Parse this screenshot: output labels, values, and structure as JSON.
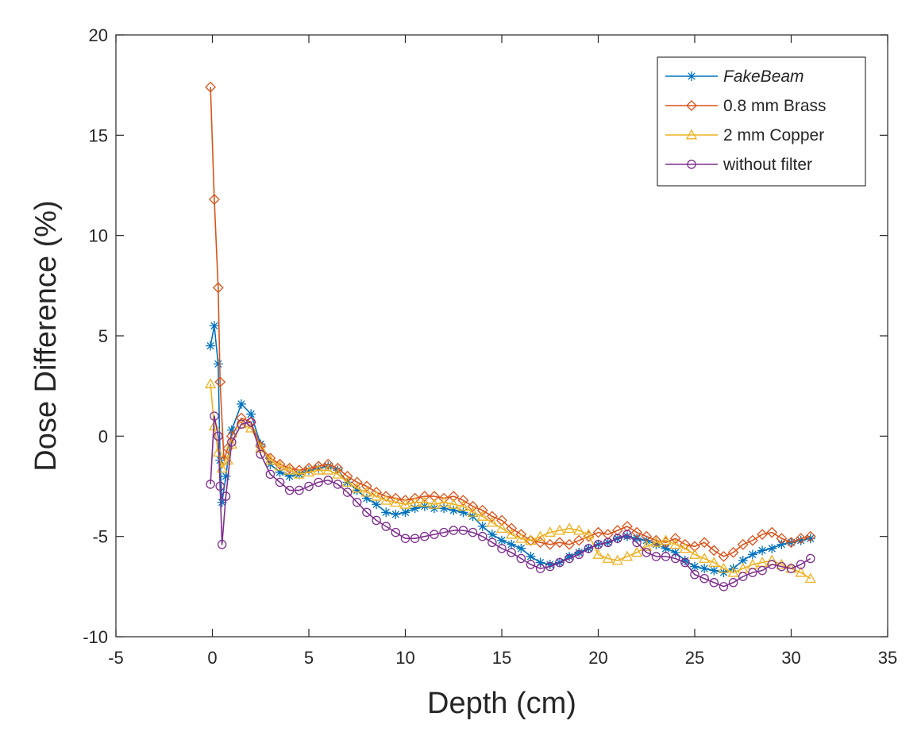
{
  "chart_data": {
    "type": "line",
    "xlabel": "Depth (cm)",
    "ylabel": "Dose Difference (%)",
    "xlim": [
      -5,
      35
    ],
    "ylim": [
      -10,
      20
    ],
    "xticks": [
      -5,
      0,
      5,
      10,
      15,
      20,
      25,
      30,
      35
    ],
    "yticks": [
      -10,
      -5,
      0,
      5,
      10,
      15,
      20
    ],
    "xtick_labels": [
      "-5",
      "0",
      "5",
      "10",
      "15",
      "20",
      "25",
      "30",
      "35"
    ],
    "ytick_labels": [
      "-10",
      "-5",
      "0",
      "5",
      "10",
      "15",
      "20"
    ],
    "grid": false,
    "legend_position": "top-right",
    "series": [
      {
        "name": "FakeBeam",
        "color": "#0072BD",
        "marker": "star",
        "points": [
          [
            -0.1,
            4.5
          ],
          [
            0.1,
            5.5
          ],
          [
            0.3,
            3.6
          ],
          [
            0.4,
            -1.2
          ],
          [
            0.5,
            -3.3
          ],
          [
            0.7,
            -2.0
          ],
          [
            1.0,
            0.3
          ],
          [
            1.5,
            1.6
          ],
          [
            2.0,
            1.1
          ],
          [
            2.5,
            -0.4
          ],
          [
            3.0,
            -1.4
          ],
          [
            3.5,
            -1.8
          ],
          [
            4.0,
            -2.0
          ],
          [
            4.5,
            -1.9
          ],
          [
            5.0,
            -1.7
          ],
          [
            5.5,
            -1.6
          ],
          [
            6.0,
            -1.5
          ],
          [
            6.5,
            -1.7
          ],
          [
            7.0,
            -2.3
          ],
          [
            7.5,
            -2.7
          ],
          [
            8.0,
            -3.1
          ],
          [
            8.5,
            -3.4
          ],
          [
            9.0,
            -3.8
          ],
          [
            9.5,
            -3.9
          ],
          [
            10.0,
            -3.8
          ],
          [
            10.5,
            -3.6
          ],
          [
            11.0,
            -3.5
          ],
          [
            11.5,
            -3.6
          ],
          [
            12.0,
            -3.6
          ],
          [
            12.5,
            -3.7
          ],
          [
            13.0,
            -3.8
          ],
          [
            13.5,
            -4.0
          ],
          [
            14.0,
            -4.5
          ],
          [
            14.5,
            -4.9
          ],
          [
            15.0,
            -5.2
          ],
          [
            15.5,
            -5.4
          ],
          [
            16.0,
            -5.6
          ],
          [
            16.5,
            -6.0
          ],
          [
            17.0,
            -6.3
          ],
          [
            17.5,
            -6.4
          ],
          [
            18.0,
            -6.3
          ],
          [
            18.5,
            -6.0
          ],
          [
            19.0,
            -5.8
          ],
          [
            19.5,
            -5.6
          ],
          [
            20.0,
            -5.4
          ],
          [
            20.5,
            -5.3
          ],
          [
            21.0,
            -5.1
          ],
          [
            21.5,
            -5.0
          ],
          [
            22.0,
            -5.1
          ],
          [
            22.5,
            -5.2
          ],
          [
            23.0,
            -5.4
          ],
          [
            23.5,
            -5.6
          ],
          [
            24.0,
            -5.8
          ],
          [
            24.5,
            -6.2
          ],
          [
            25.0,
            -6.5
          ],
          [
            25.5,
            -6.6
          ],
          [
            26.0,
            -6.7
          ],
          [
            26.5,
            -6.8
          ],
          [
            27.0,
            -6.6
          ],
          [
            27.5,
            -6.2
          ],
          [
            28.0,
            -5.9
          ],
          [
            28.5,
            -5.7
          ],
          [
            29.0,
            -5.6
          ],
          [
            29.5,
            -5.4
          ],
          [
            30.0,
            -5.3
          ],
          [
            30.5,
            -5.2
          ],
          [
            31.0,
            -5.1
          ]
        ]
      },
      {
        "name": "0.8 mm Brass",
        "color": "#D95319",
        "marker": "diamond",
        "points": [
          [
            -0.1,
            17.4
          ],
          [
            0.1,
            11.8
          ],
          [
            0.3,
            7.4
          ],
          [
            0.4,
            2.7
          ],
          [
            0.6,
            -1.2
          ],
          [
            0.8,
            -0.6
          ],
          [
            1.0,
            0.0
          ],
          [
            1.5,
            0.9
          ],
          [
            2.0,
            0.7
          ],
          [
            2.5,
            -0.5
          ],
          [
            3.0,
            -1.1
          ],
          [
            3.5,
            -1.4
          ],
          [
            4.0,
            -1.6
          ],
          [
            4.5,
            -1.7
          ],
          [
            5.0,
            -1.6
          ],
          [
            5.5,
            -1.5
          ],
          [
            6.0,
            -1.4
          ],
          [
            6.5,
            -1.6
          ],
          [
            7.0,
            -2.0
          ],
          [
            7.5,
            -2.3
          ],
          [
            8.0,
            -2.5
          ],
          [
            8.5,
            -2.8
          ],
          [
            9.0,
            -3.0
          ],
          [
            9.5,
            -3.1
          ],
          [
            10.0,
            -3.2
          ],
          [
            10.5,
            -3.1
          ],
          [
            11.0,
            -3.0
          ],
          [
            11.5,
            -3.0
          ],
          [
            12.0,
            -3.1
          ],
          [
            12.5,
            -3.0
          ],
          [
            13.0,
            -3.2
          ],
          [
            13.5,
            -3.5
          ],
          [
            14.0,
            -3.7
          ],
          [
            14.5,
            -4.0
          ],
          [
            15.0,
            -4.2
          ],
          [
            15.5,
            -4.6
          ],
          [
            16.0,
            -4.9
          ],
          [
            16.5,
            -5.2
          ],
          [
            17.0,
            -5.3
          ],
          [
            17.5,
            -5.4
          ],
          [
            18.0,
            -5.3
          ],
          [
            18.5,
            -5.4
          ],
          [
            19.0,
            -5.2
          ],
          [
            19.5,
            -5.0
          ],
          [
            20.0,
            -4.8
          ],
          [
            20.5,
            -4.9
          ],
          [
            21.0,
            -4.7
          ],
          [
            21.5,
            -4.5
          ],
          [
            22.0,
            -4.8
          ],
          [
            22.5,
            -5.0
          ],
          [
            23.0,
            -5.2
          ],
          [
            23.5,
            -5.3
          ],
          [
            24.0,
            -5.1
          ],
          [
            24.5,
            -5.4
          ],
          [
            25.0,
            -5.5
          ],
          [
            25.5,
            -5.3
          ],
          [
            26.0,
            -5.7
          ],
          [
            26.5,
            -6.0
          ],
          [
            27.0,
            -5.8
          ],
          [
            27.5,
            -5.4
          ],
          [
            28.0,
            -5.2
          ],
          [
            28.5,
            -4.9
          ],
          [
            29.0,
            -4.8
          ],
          [
            29.5,
            -5.1
          ],
          [
            30.0,
            -5.3
          ],
          [
            30.5,
            -5.1
          ],
          [
            31.0,
            -5.0
          ]
        ]
      },
      {
        "name": "2 mm Copper",
        "color": "#EDB120",
        "marker": "triangle",
        "points": [
          [
            -0.1,
            2.6
          ],
          [
            0.1,
            0.5
          ],
          [
            0.3,
            -0.8
          ],
          [
            0.5,
            -1.6
          ],
          [
            0.8,
            -1.2
          ],
          [
            1.0,
            -0.4
          ],
          [
            1.5,
            0.6
          ],
          [
            2.0,
            0.4
          ],
          [
            2.5,
            -0.6
          ],
          [
            3.0,
            -1.2
          ],
          [
            3.5,
            -1.5
          ],
          [
            4.0,
            -1.7
          ],
          [
            4.5,
            -1.9
          ],
          [
            5.0,
            -1.8
          ],
          [
            5.5,
            -1.7
          ],
          [
            6.0,
            -1.7
          ],
          [
            6.5,
            -1.9
          ],
          [
            7.0,
            -2.3
          ],
          [
            7.5,
            -2.6
          ],
          [
            8.0,
            -2.8
          ],
          [
            8.5,
            -3.0
          ],
          [
            9.0,
            -3.2
          ],
          [
            9.5,
            -3.3
          ],
          [
            10.0,
            -3.4
          ],
          [
            10.5,
            -3.3
          ],
          [
            11.0,
            -3.3
          ],
          [
            11.5,
            -3.4
          ],
          [
            12.0,
            -3.3
          ],
          [
            12.5,
            -3.4
          ],
          [
            13.0,
            -3.5
          ],
          [
            13.5,
            -3.8
          ],
          [
            14.0,
            -4.0
          ],
          [
            14.5,
            -4.3
          ],
          [
            15.0,
            -4.6
          ],
          [
            15.5,
            -4.9
          ],
          [
            16.0,
            -5.1
          ],
          [
            16.5,
            -5.2
          ],
          [
            17.0,
            -5.0
          ],
          [
            17.5,
            -4.8
          ],
          [
            18.0,
            -4.7
          ],
          [
            18.5,
            -4.6
          ],
          [
            19.0,
            -4.7
          ],
          [
            19.5,
            -4.9
          ],
          [
            20.0,
            -5.9
          ],
          [
            20.5,
            -6.1
          ],
          [
            21.0,
            -6.2
          ],
          [
            21.5,
            -6.0
          ],
          [
            22.0,
            -5.8
          ],
          [
            22.5,
            -5.5
          ],
          [
            23.0,
            -5.3
          ],
          [
            23.5,
            -5.2
          ],
          [
            24.0,
            -5.4
          ],
          [
            24.5,
            -5.6
          ],
          [
            25.0,
            -5.9
          ],
          [
            25.5,
            -6.1
          ],
          [
            26.0,
            -6.3
          ],
          [
            26.5,
            -6.6
          ],
          [
            27.0,
            -6.8
          ],
          [
            27.5,
            -6.6
          ],
          [
            28.0,
            -6.4
          ],
          [
            28.5,
            -6.3
          ],
          [
            29.0,
            -6.2
          ],
          [
            29.5,
            -6.4
          ],
          [
            30.0,
            -6.6
          ],
          [
            30.5,
            -6.8
          ],
          [
            31.0,
            -7.1
          ]
        ]
      },
      {
        "name": "without filter",
        "color": "#7E2F8E",
        "marker": "circle",
        "points": [
          [
            -0.1,
            -2.4
          ],
          [
            0.1,
            1.0
          ],
          [
            0.3,
            0.0
          ],
          [
            0.4,
            -2.5
          ],
          [
            0.5,
            -5.4
          ],
          [
            0.7,
            -3.0
          ],
          [
            1.0,
            -0.3
          ],
          [
            1.5,
            0.6
          ],
          [
            2.0,
            0.7
          ],
          [
            2.5,
            -0.9
          ],
          [
            3.0,
            -1.9
          ],
          [
            3.5,
            -2.3
          ],
          [
            4.0,
            -2.7
          ],
          [
            4.5,
            -2.7
          ],
          [
            5.0,
            -2.5
          ],
          [
            5.5,
            -2.3
          ],
          [
            6.0,
            -2.2
          ],
          [
            6.5,
            -2.4
          ],
          [
            7.0,
            -2.8
          ],
          [
            7.5,
            -3.3
          ],
          [
            8.0,
            -3.8
          ],
          [
            8.5,
            -4.2
          ],
          [
            9.0,
            -4.5
          ],
          [
            9.5,
            -4.8
          ],
          [
            10.0,
            -5.1
          ],
          [
            10.5,
            -5.1
          ],
          [
            11.0,
            -5.0
          ],
          [
            11.5,
            -4.9
          ],
          [
            12.0,
            -4.8
          ],
          [
            12.5,
            -4.7
          ],
          [
            13.0,
            -4.7
          ],
          [
            13.5,
            -4.8
          ],
          [
            14.0,
            -5.0
          ],
          [
            14.5,
            -5.3
          ],
          [
            15.0,
            -5.6
          ],
          [
            15.5,
            -5.8
          ],
          [
            16.0,
            -6.1
          ],
          [
            16.5,
            -6.4
          ],
          [
            17.0,
            -6.6
          ],
          [
            17.5,
            -6.5
          ],
          [
            18.0,
            -6.3
          ],
          [
            18.5,
            -6.1
          ],
          [
            19.0,
            -5.9
          ],
          [
            19.5,
            -5.6
          ],
          [
            20.0,
            -5.4
          ],
          [
            20.5,
            -5.3
          ],
          [
            21.0,
            -5.1
          ],
          [
            21.5,
            -4.9
          ],
          [
            22.0,
            -5.3
          ],
          [
            22.5,
            -5.8
          ],
          [
            23.0,
            -6.0
          ],
          [
            23.5,
            -6.0
          ],
          [
            24.0,
            -6.1
          ],
          [
            24.5,
            -6.3
          ],
          [
            25.0,
            -6.9
          ],
          [
            25.5,
            -7.1
          ],
          [
            26.0,
            -7.3
          ],
          [
            26.5,
            -7.5
          ],
          [
            27.0,
            -7.3
          ],
          [
            27.5,
            -7.0
          ],
          [
            28.0,
            -6.8
          ],
          [
            28.5,
            -6.7
          ],
          [
            29.0,
            -6.4
          ],
          [
            29.5,
            -6.5
          ],
          [
            30.0,
            -6.6
          ],
          [
            30.5,
            -6.4
          ],
          [
            31.0,
            -6.1
          ]
        ]
      }
    ]
  }
}
